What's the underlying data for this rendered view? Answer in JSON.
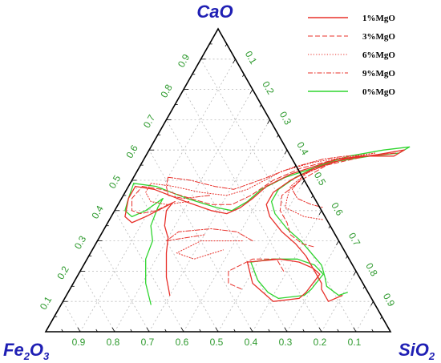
{
  "chart_data": {
    "type": "ternary",
    "vertices": {
      "top": {
        "label": "CaO",
        "sub": ""
      },
      "left": {
        "label": "Fe",
        "sub1": "2",
        "mid": "O",
        "sub2": "3"
      },
      "right": {
        "label": "Si",
        "sub1": "O",
        "sub2": "2"
      }
    },
    "ticks": {
      "cao_left_edge": [
        "0.1",
        "0.2",
        "0.3",
        "0.4",
        "0.5",
        "0.6",
        "0.7",
        "0.8",
        "0.9"
      ],
      "sio2_right_edge": [
        "0.1",
        "0.2",
        "0.3",
        "0.4",
        "0.5",
        "0.6",
        "0.7",
        "0.8",
        "0.9"
      ],
      "fe2o3_bottom_edge": [
        "0.9",
        "0.8",
        "0.7",
        "0.6",
        "0.5",
        "0.4",
        "0.3",
        "0.2",
        "0.1"
      ]
    },
    "grid": true,
    "legend_position": "top-right",
    "colors": {
      "accent_red": "#e8302a",
      "accent_green": "#2fd52f",
      "tick_green": "#2e9a2e",
      "vertex_blue": "#1f1fb4"
    },
    "series": [
      {
        "name": "1%MgO",
        "style": "solid",
        "color": "#e8302a",
        "curves": [
          [
            [
              0.12,
              0.3
            ],
            [
              0.18,
              0.26
            ],
            [
              0.26,
              0.22
            ],
            [
              0.31,
              0.2
            ],
            [
              0.35,
              0.17
            ],
            [
              0.4,
              0.15
            ],
            [
              0.425,
              0.155
            ]
          ],
          [
            [
              0.425,
              0.155
            ],
            [
              0.38,
              0.1
            ],
            [
              0.36,
              0.07
            ],
            [
              0.38,
              0.04
            ],
            [
              0.44,
              0.02
            ],
            [
              0.48,
              0.02
            ]
          ],
          [
            [
              0.48,
              0.02
            ],
            [
              0.47,
              0.08
            ],
            [
              0.43,
              0.19
            ],
            [
              0.4,
              0.28
            ],
            [
              0.39,
              0.33
            ],
            [
              0.41,
              0.36
            ],
            [
              0.44,
              0.38
            ],
            [
              0.48,
              0.4
            ],
            [
              0.52,
              0.45
            ],
            [
              0.57,
              0.56
            ],
            [
              0.58,
              0.63
            ],
            [
              0.58,
              0.72
            ],
            [
              0.6,
              0.74
            ]
          ],
          [
            [
              0.6,
              0.74
            ],
            [
              0.585,
              0.67
            ],
            [
              0.57,
              0.58
            ],
            [
              0.54,
              0.51
            ],
            [
              0.5,
              0.46
            ],
            [
              0.46,
              0.43
            ],
            [
              0.42,
              0.43
            ],
            [
              0.38,
              0.46
            ],
            [
              0.33,
              0.52
            ],
            [
              0.29,
              0.58
            ],
            [
              0.25,
              0.63
            ],
            [
              0.2,
              0.68
            ],
            [
              0.16,
              0.72
            ],
            [
              0.14,
              0.73
            ],
            [
              0.1,
              0.77
            ],
            [
              0.12,
              0.8
            ]
          ],
          [
            [
              0.19,
              0.7
            ],
            [
              0.21,
              0.67
            ],
            [
              0.23,
              0.62
            ],
            [
              0.24,
              0.56
            ],
            [
              0.23,
              0.47
            ],
            [
              0.16,
              0.52
            ],
            [
              0.12,
              0.58
            ],
            [
              0.1,
              0.61
            ],
            [
              0.11,
              0.68
            ],
            [
              0.13,
              0.69
            ],
            [
              0.19,
              0.7
            ]
          ]
        ]
      },
      {
        "name": "3%MgO",
        "style": "dashed",
        "color": "#e8302a",
        "curves": [
          [
            [
              0.43,
              0.16
            ],
            [
              0.4,
              0.12
            ],
            [
              0.39,
              0.08
            ],
            [
              0.4,
              0.05
            ],
            [
              0.44,
              0.03
            ],
            [
              0.48,
              0.04
            ]
          ],
          [
            [
              0.48,
              0.04
            ],
            [
              0.47,
              0.1
            ],
            [
              0.44,
              0.2
            ],
            [
              0.42,
              0.27
            ],
            [
              0.42,
              0.33
            ],
            [
              0.45,
              0.37
            ],
            [
              0.5,
              0.41
            ],
            [
              0.54,
              0.47
            ],
            [
              0.57,
              0.56
            ],
            [
              0.58,
              0.65
            ],
            [
              0.59,
              0.72
            ]
          ],
          [
            [
              0.59,
              0.72
            ],
            [
              0.58,
              0.64
            ],
            [
              0.55,
              0.54
            ],
            [
              0.5,
              0.49
            ],
            [
              0.45,
              0.46
            ],
            [
              0.4,
              0.48
            ],
            [
              0.36,
              0.52
            ],
            [
              0.32,
              0.55
            ],
            [
              0.29,
              0.6
            ],
            [
              0.28,
              0.64
            ]
          ],
          [
            [
              0.2,
              0.59
            ],
            [
              0.24,
              0.55
            ],
            [
              0.24,
              0.48
            ],
            [
              0.2,
              0.43
            ],
            [
              0.16,
              0.45
            ],
            [
              0.14,
              0.5
            ]
          ]
        ]
      },
      {
        "name": "6%MgO",
        "style": "dotted",
        "color": "#e8302a",
        "curves": [
          [
            [
              0.43,
              0.2
            ],
            [
              0.42,
              0.14
            ],
            [
              0.43,
              0.09
            ],
            [
              0.46,
              0.06
            ],
            [
              0.49,
              0.06
            ]
          ],
          [
            [
              0.49,
              0.06
            ],
            [
              0.48,
              0.13
            ],
            [
              0.46,
              0.22
            ],
            [
              0.45,
              0.3
            ],
            [
              0.47,
              0.35
            ],
            [
              0.53,
              0.42
            ],
            [
              0.56,
              0.5
            ],
            [
              0.58,
              0.6
            ],
            [
              0.59,
              0.66
            ]
          ],
          [
            [
              0.59,
              0.66
            ],
            [
              0.57,
              0.58
            ],
            [
              0.53,
              0.5
            ],
            [
              0.48,
              0.47
            ],
            [
              0.44,
              0.48
            ],
            [
              0.41,
              0.49
            ],
            [
              0.38,
              0.56
            ],
            [
              0.37,
              0.62
            ]
          ],
          [
            [
              0.3,
              0.42
            ],
            [
              0.3,
              0.3
            ],
            [
              0.26,
              0.25
            ],
            [
              0.24,
              0.31
            ],
            [
              0.27,
              0.38
            ]
          ]
        ]
      },
      {
        "name": "9%MgO",
        "style": "dashdot",
        "color": "#e8302a",
        "curves": [
          [
            [
              0.45,
              0.25
            ],
            [
              0.44,
              0.18
            ],
            [
              0.45,
              0.13
            ],
            [
              0.48,
              0.11
            ],
            [
              0.51,
              0.1
            ]
          ],
          [
            [
              0.51,
              0.1
            ],
            [
              0.5,
              0.17
            ],
            [
              0.48,
              0.25
            ],
            [
              0.47,
              0.31
            ],
            [
              0.5,
              0.37
            ],
            [
              0.54,
              0.44
            ],
            [
              0.57,
              0.52
            ],
            [
              0.58,
              0.58
            ],
            [
              0.58,
              0.63
            ]
          ],
          [
            [
              0.58,
              0.63
            ],
            [
              0.56,
              0.55
            ],
            [
              0.52,
              0.49
            ],
            [
              0.47,
              0.48
            ],
            [
              0.44,
              0.51
            ],
            [
              0.42,
              0.56
            ],
            [
              0.41,
              0.6
            ]
          ],
          [
            [
              0.3,
              0.45
            ],
            [
              0.33,
              0.39
            ],
            [
              0.34,
              0.31
            ],
            [
              0.33,
              0.22
            ],
            [
              0.3,
              0.2
            ],
            [
              0.32,
              0.3
            ]
          ]
        ]
      },
      {
        "name": "0%MgO",
        "style": "solid",
        "color": "#2fd52f",
        "curves": [
          [
            [
              0.09,
              0.26
            ],
            [
              0.16,
              0.21
            ],
            [
              0.24,
              0.17
            ],
            [
              0.3,
              0.16
            ],
            [
              0.35,
              0.13
            ],
            [
              0.41,
              0.12
            ],
            [
              0.44,
              0.12
            ]
          ],
          [
            [
              0.44,
              0.12
            ],
            [
              0.4,
              0.09
            ],
            [
              0.38,
              0.06
            ],
            [
              0.4,
              0.03
            ],
            [
              0.44,
              0.02
            ],
            [
              0.49,
              0.01
            ]
          ],
          [
            [
              0.49,
              0.01
            ],
            [
              0.48,
              0.08
            ],
            [
              0.44,
              0.19
            ],
            [
              0.41,
              0.29
            ],
            [
              0.4,
              0.34
            ],
            [
              0.43,
              0.37
            ],
            [
              0.47,
              0.39
            ],
            [
              0.51,
              0.44
            ],
            [
              0.56,
              0.55
            ],
            [
              0.58,
              0.65
            ],
            [
              0.59,
              0.73
            ],
            [
              0.61,
              0.75
            ]
          ],
          [
            [
              0.61,
              0.75
            ],
            [
              0.6,
              0.68
            ],
            [
              0.58,
              0.59
            ],
            [
              0.55,
              0.52
            ],
            [
              0.51,
              0.47
            ],
            [
              0.47,
              0.44
            ],
            [
              0.43,
              0.44
            ],
            [
              0.39,
              0.47
            ],
            [
              0.34,
              0.53
            ],
            [
              0.3,
              0.59
            ],
            [
              0.26,
              0.64
            ],
            [
              0.22,
              0.69
            ],
            [
              0.18,
              0.72
            ],
            [
              0.15,
              0.74
            ],
            [
              0.12,
              0.79
            ],
            [
              0.13,
              0.81
            ]
          ],
          [
            [
              0.19,
              0.71
            ],
            [
              0.22,
              0.67
            ],
            [
              0.24,
              0.61
            ],
            [
              0.24,
              0.54
            ],
            [
              0.23,
              0.48
            ],
            [
              0.17,
              0.53
            ],
            [
              0.13,
              0.58
            ],
            [
              0.11,
              0.62
            ],
            [
              0.12,
              0.69
            ],
            [
              0.14,
              0.7
            ],
            [
              0.19,
              0.71
            ]
          ]
        ]
      }
    ]
  }
}
